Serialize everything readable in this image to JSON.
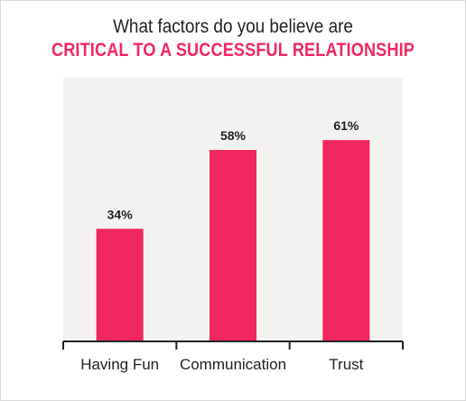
{
  "chart_data": {
    "type": "bar",
    "title": "What factors do you believe are",
    "subtitle": "CRITICAL TO A SUCCESSFUL RELATIONSHIP",
    "categories": [
      "Having Fun",
      "Communication",
      "Trust"
    ],
    "values": [
      34,
      58,
      61
    ],
    "value_labels": [
      "34%",
      "58%",
      "61%"
    ],
    "ylim": [
      0,
      80
    ],
    "grid": false,
    "legend": "none",
    "colors": {
      "bar": "#f2275f",
      "subtitle": "#f2275f",
      "plot_background": "#f3f2f0",
      "axis": "#222222"
    }
  }
}
